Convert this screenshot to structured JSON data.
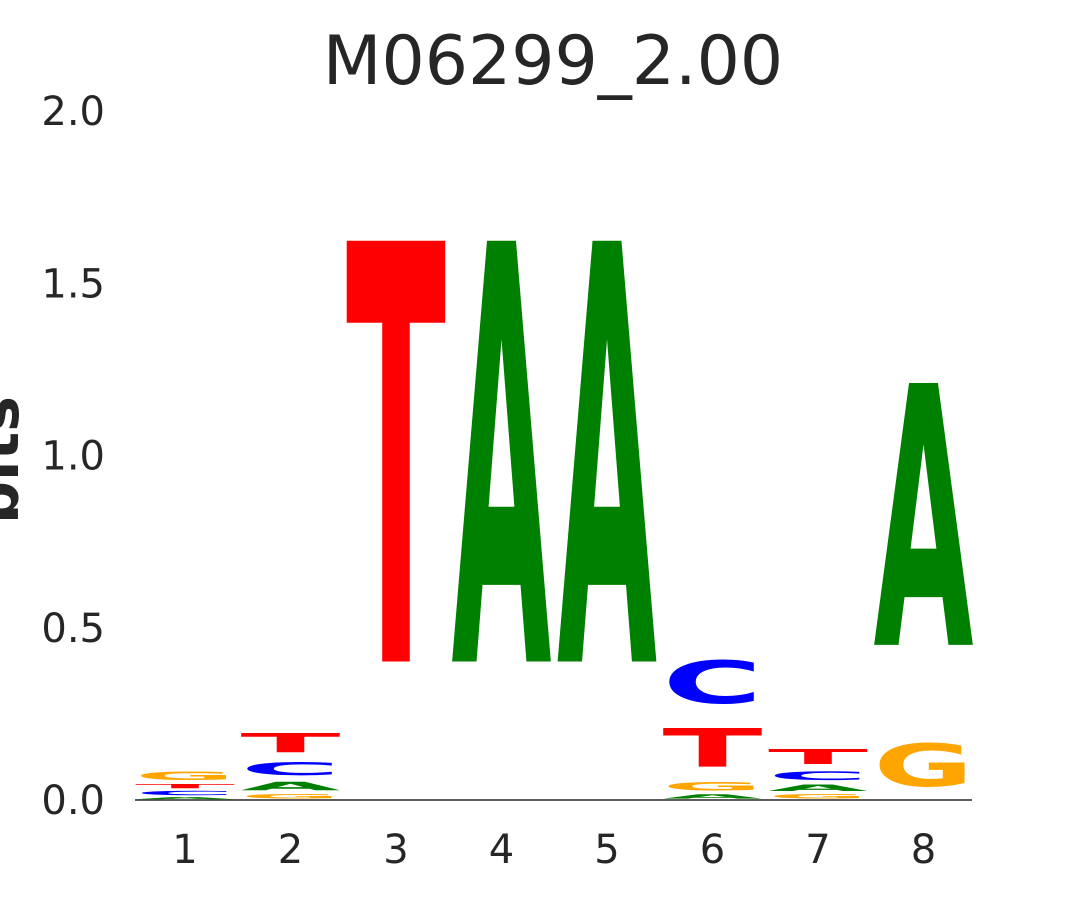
{
  "chart_data": {
    "type": "sequence-logo",
    "title": "M06299_2.00",
    "ylabel": "bits",
    "ylim": [
      0,
      2.0
    ],
    "yticks": [
      "0.0",
      "0.5",
      "1.0",
      "1.5",
      "2.0"
    ],
    "positions": [
      "1",
      "2",
      "3",
      "4",
      "5",
      "6",
      "7",
      "8"
    ],
    "colors": {
      "A": "#008000",
      "C": "#0000ff",
      "G": "#ffa500",
      "T": "#ff0000"
    },
    "stacks": [
      [
        {
          "letter": "A",
          "bits": 0.01
        },
        {
          "letter": "C",
          "bits": 0.02
        },
        {
          "letter": "T",
          "bits": 0.02
        },
        {
          "letter": "G",
          "bits": 0.04
        }
      ],
      [
        {
          "letter": "G",
          "bits": 0.02
        },
        {
          "letter": "A",
          "bits": 0.04
        },
        {
          "letter": "C",
          "bits": 0.06
        },
        {
          "letter": "T",
          "bits": 0.09
        }
      ],
      [
        {
          "letter": "T",
          "bits": 1.96
        }
      ],
      [
        {
          "letter": "A",
          "bits": 1.96
        }
      ],
      [
        {
          "letter": "A",
          "bits": 1.96
        }
      ],
      [
        {
          "letter": "A",
          "bits": 0.02
        },
        {
          "letter": "G",
          "bits": 0.04
        },
        {
          "letter": "T",
          "bits": 0.18
        },
        {
          "letter": "C",
          "bits": 0.2
        }
      ],
      [
        {
          "letter": "G",
          "bits": 0.02
        },
        {
          "letter": "A",
          "bits": 0.03
        },
        {
          "letter": "C",
          "bits": 0.04
        },
        {
          "letter": "T",
          "bits": 0.07
        }
      ],
      [
        {
          "letter": "G",
          "bits": 0.2
        },
        {
          "letter": "A",
          "bits": 1.22
        }
      ]
    ]
  }
}
